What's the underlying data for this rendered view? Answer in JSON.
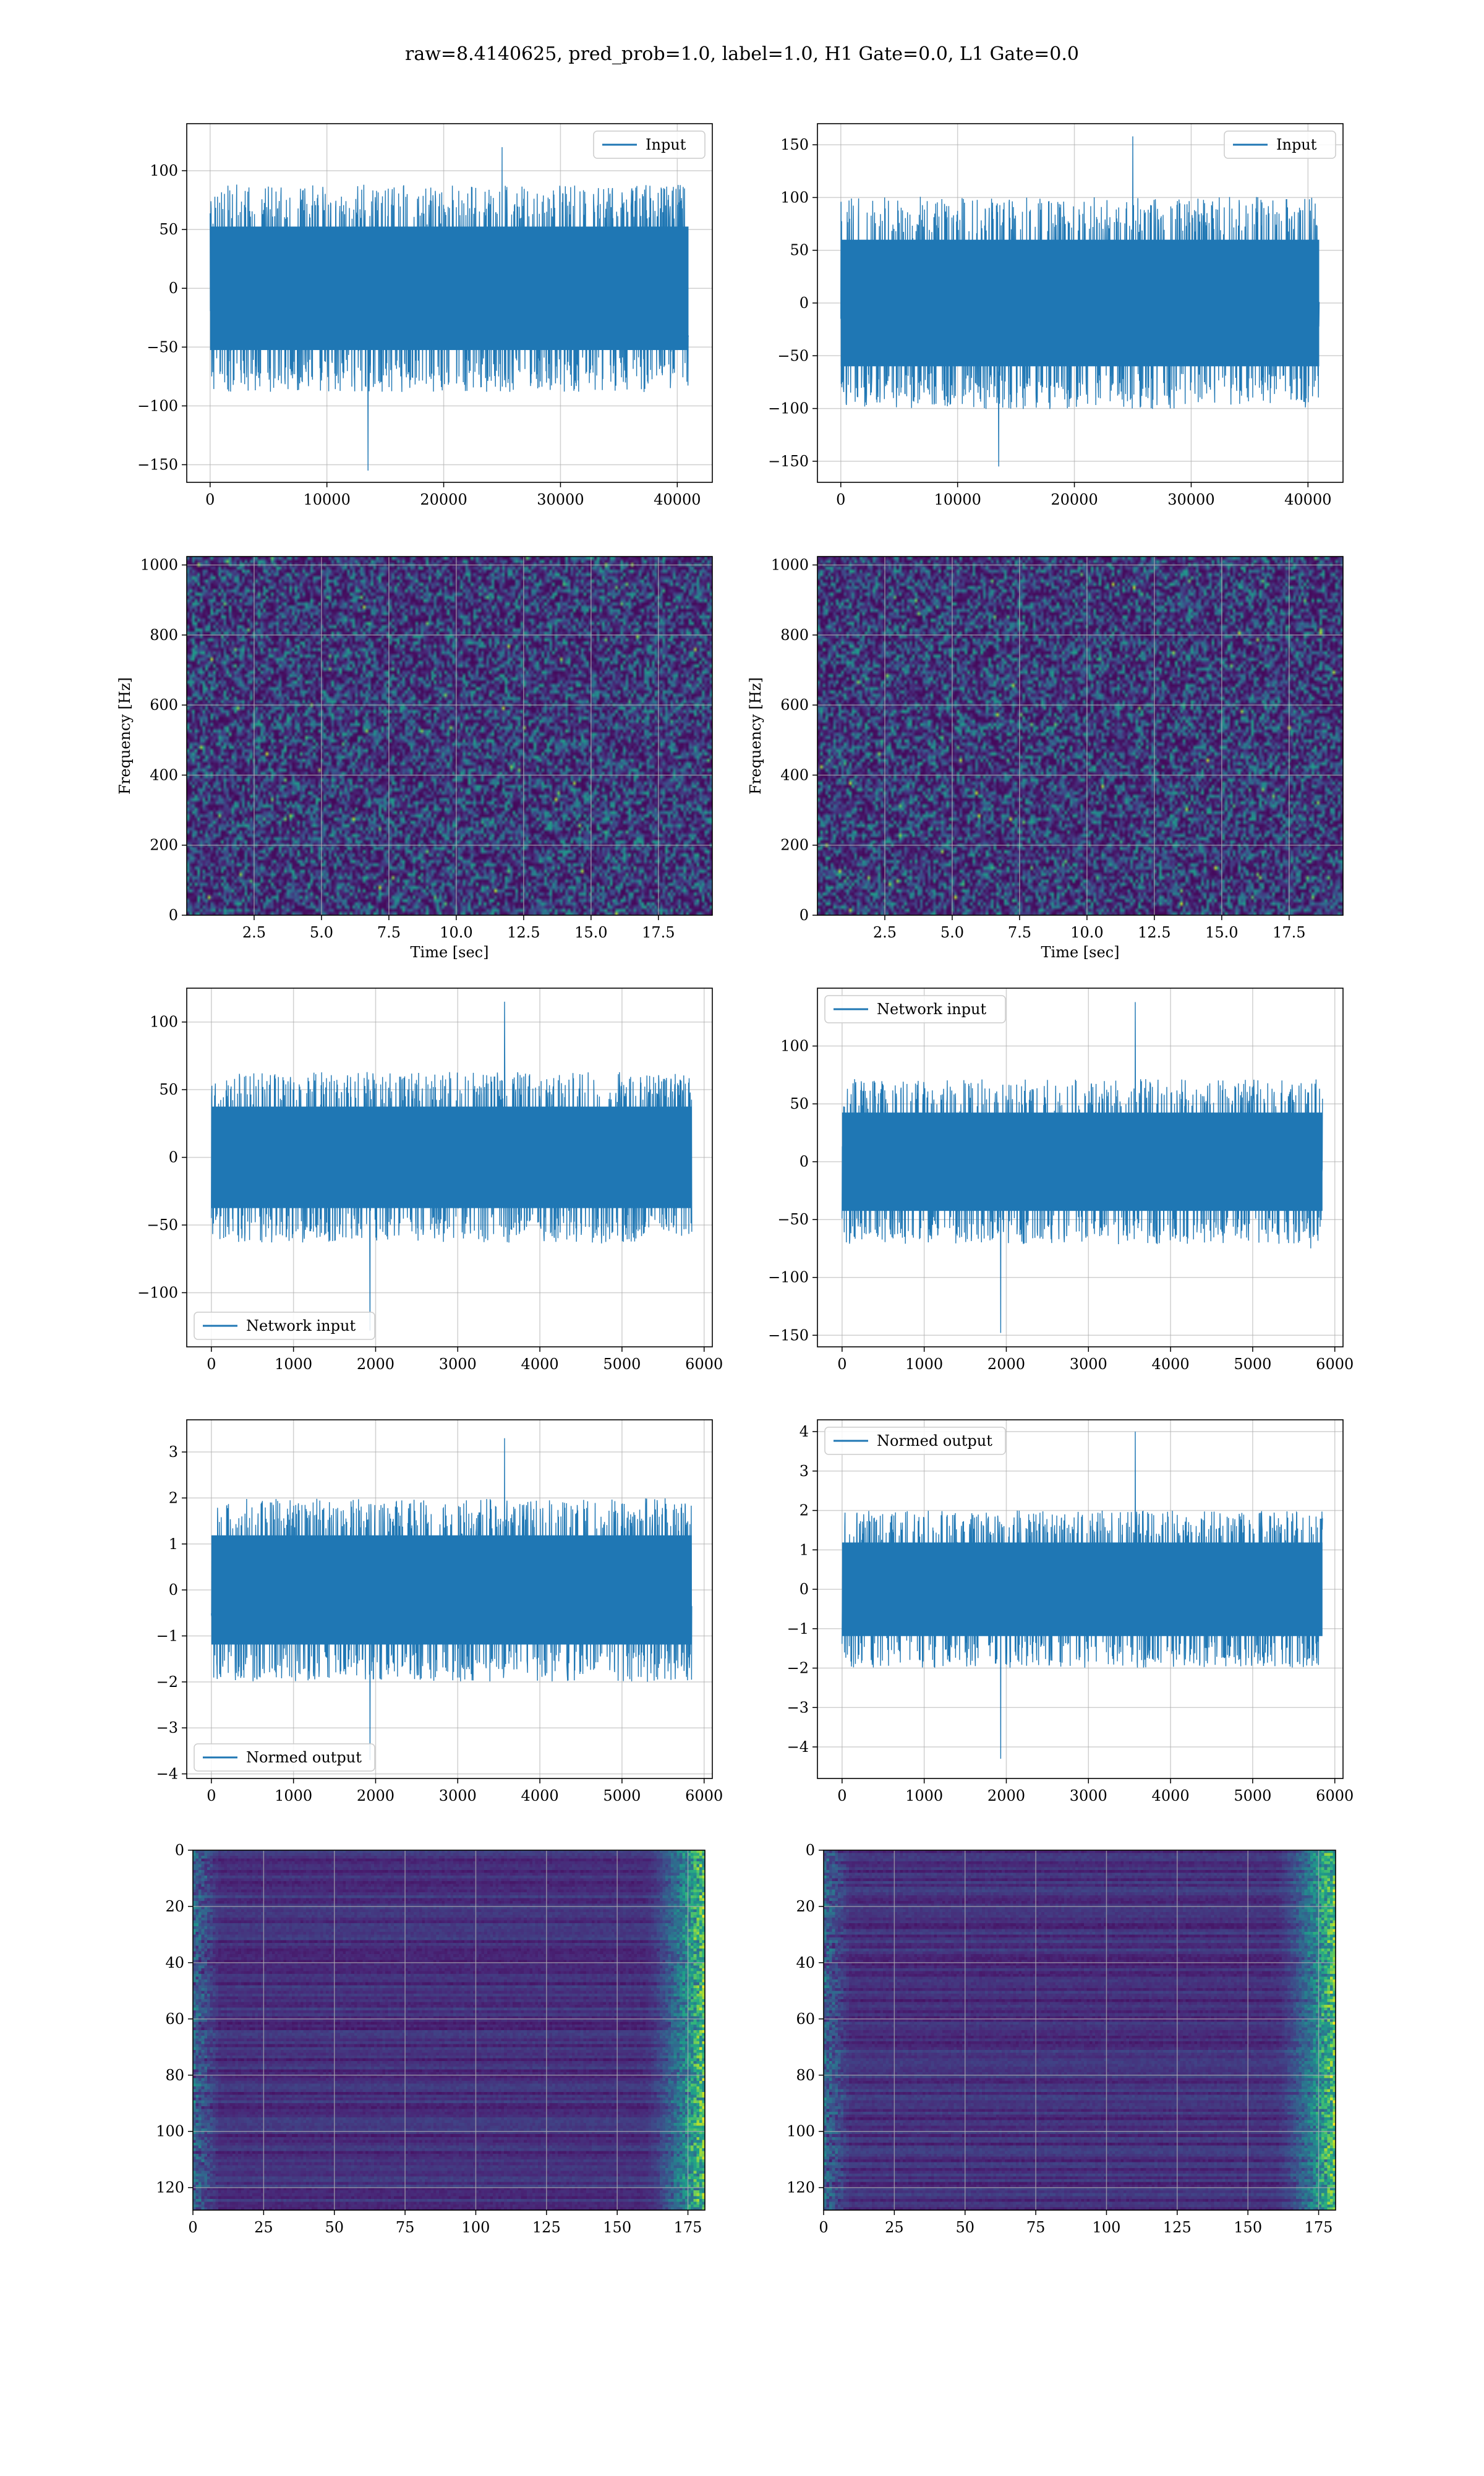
{
  "figure": {
    "suptitle": "raw=8.4140625, pred_prob=1.0, label=1.0, H1 Gate=0.0, L1 Gate=0.0",
    "colors": {
      "line": "#1f77b4",
      "grid": "#b0b0b0",
      "viridis_dark": "#440154"
    }
  },
  "chart_data": [
    {
      "id": "input-h1",
      "type": "line",
      "series": [
        {
          "name": "Input",
          "amp": 42,
          "extreme_min": -155,
          "extreme_max": 120
        }
      ],
      "xlim": [
        -2000,
        43000
      ],
      "ylim": [
        -165,
        140
      ],
      "xticks": [
        0,
        10000,
        20000,
        30000,
        40000
      ],
      "yticks": [
        -150,
        -100,
        -50,
        0,
        50,
        100
      ],
      "tick_labels_x": [
        "0",
        "10000",
        "20000",
        "30000",
        "40000"
      ],
      "tick_labels_y": [
        "−150",
        "−100",
        "−50",
        "0",
        "50",
        "100"
      ],
      "data_x_range": [
        0,
        40960
      ],
      "grid": true,
      "legend": "upper right",
      "xlabel": "",
      "ylabel": ""
    },
    {
      "id": "input-l1",
      "type": "line",
      "series": [
        {
          "name": "Input",
          "amp": 48,
          "extreme_min": -155,
          "extreme_max": 158
        }
      ],
      "xlim": [
        -2000,
        43000
      ],
      "ylim": [
        -170,
        170
      ],
      "xticks": [
        0,
        10000,
        20000,
        30000,
        40000
      ],
      "yticks": [
        -150,
        -100,
        -50,
        0,
        50,
        100,
        150
      ],
      "tick_labels_x": [
        "0",
        "10000",
        "20000",
        "30000",
        "40000"
      ],
      "tick_labels_y": [
        "−150",
        "−100",
        "−50",
        "0",
        "50",
        "100",
        "150"
      ],
      "data_x_range": [
        0,
        40960
      ],
      "grid": true,
      "legend": "upper right",
      "xlabel": "",
      "ylabel": ""
    },
    {
      "id": "spec-h1",
      "type": "heatmap",
      "xlim": [
        0,
        19.5
      ],
      "ylim": [
        0,
        1024
      ],
      "xticks": [
        2.5,
        5,
        7.5,
        10,
        12.5,
        15,
        17.5
      ],
      "yticks": [
        0,
        200,
        400,
        600,
        800,
        1000
      ],
      "tick_labels_x": [
        "2.5",
        "5.0",
        "7.5",
        "10.0",
        "12.5",
        "15.0",
        "17.5"
      ],
      "tick_labels_y": [
        "0",
        "200",
        "400",
        "600",
        "800",
        "1000"
      ],
      "xlabel": "Time [sec]",
      "ylabel": "Frequency [Hz]",
      "grid": true,
      "colormap": "viridis"
    },
    {
      "id": "spec-l1",
      "type": "heatmap",
      "xlim": [
        0,
        19.5
      ],
      "ylim": [
        0,
        1024
      ],
      "xticks": [
        2.5,
        5,
        7.5,
        10,
        12.5,
        15,
        17.5
      ],
      "yticks": [
        0,
        200,
        400,
        600,
        800,
        1000
      ],
      "tick_labels_x": [
        "2.5",
        "5.0",
        "7.5",
        "10.0",
        "12.5",
        "15.0",
        "17.5"
      ],
      "tick_labels_y": [
        "0",
        "200",
        "400",
        "600",
        "800",
        "1000"
      ],
      "xlabel": "Time [sec]",
      "ylabel": "Frequency [Hz]",
      "grid": true,
      "colormap": "viridis"
    },
    {
      "id": "net-h1",
      "type": "line",
      "series": [
        {
          "name": "Network input",
          "amp": 30,
          "extreme_min": -128,
          "extreme_max": 115
        }
      ],
      "xlim": [
        -300,
        6100
      ],
      "ylim": [
        -140,
        125
      ],
      "xticks": [
        0,
        1000,
        2000,
        3000,
        4000,
        5000,
        6000
      ],
      "yticks": [
        -100,
        -50,
        0,
        50,
        100
      ],
      "tick_labels_x": [
        "0",
        "1000",
        "2000",
        "3000",
        "4000",
        "5000",
        "6000"
      ],
      "tick_labels_y": [
        "−100",
        "−50",
        "0",
        "50",
        "100"
      ],
      "data_x_range": [
        0,
        5850
      ],
      "grid": true,
      "legend": "lower left",
      "xlabel": "",
      "ylabel": ""
    },
    {
      "id": "net-l1",
      "type": "line",
      "series": [
        {
          "name": "Network input",
          "amp": 34,
          "extreme_min": -148,
          "extreme_max": 138
        }
      ],
      "xlim": [
        -300,
        6100
      ],
      "ylim": [
        -160,
        150
      ],
      "xticks": [
        0,
        1000,
        2000,
        3000,
        4000,
        5000,
        6000
      ],
      "yticks": [
        -150,
        -100,
        -50,
        0,
        50,
        100
      ],
      "tick_labels_x": [
        "0",
        "1000",
        "2000",
        "3000",
        "4000",
        "5000",
        "6000"
      ],
      "tick_labels_y": [
        "−150",
        "−100",
        "−50",
        "0",
        "50",
        "100"
      ],
      "data_x_range": [
        0,
        5850
      ],
      "grid": true,
      "legend": "upper left",
      "xlabel": "",
      "ylabel": ""
    },
    {
      "id": "norm-h1",
      "type": "line",
      "series": [
        {
          "name": "Normed output",
          "amp": 0.95,
          "extreme_min": -3.7,
          "extreme_max": 3.3
        }
      ],
      "xlim": [
        -300,
        6100
      ],
      "ylim": [
        -4.1,
        3.7
      ],
      "xticks": [
        0,
        1000,
        2000,
        3000,
        4000,
        5000,
        6000
      ],
      "yticks": [
        -4,
        -3,
        -2,
        -1,
        0,
        1,
        2,
        3
      ],
      "tick_labels_x": [
        "0",
        "1000",
        "2000",
        "3000",
        "4000",
        "5000",
        "6000"
      ],
      "tick_labels_y": [
        "−4",
        "−3",
        "−2",
        "−1",
        "0",
        "1",
        "2",
        "3"
      ],
      "data_x_range": [
        0,
        5850
      ],
      "grid": true,
      "legend": "lower left",
      "xlabel": "",
      "ylabel": ""
    },
    {
      "id": "norm-l1",
      "type": "line",
      "series": [
        {
          "name": "Normed output",
          "amp": 0.95,
          "extreme_min": -4.3,
          "extreme_max": 4.0
        }
      ],
      "xlim": [
        -300,
        6100
      ],
      "ylim": [
        -4.8,
        4.3
      ],
      "xticks": [
        0,
        1000,
        2000,
        3000,
        4000,
        5000,
        6000
      ],
      "yticks": [
        -4,
        -3,
        -2,
        -1,
        0,
        1,
        2,
        3,
        4
      ],
      "tick_labels_x": [
        "0",
        "1000",
        "2000",
        "3000",
        "4000",
        "5000",
        "6000"
      ],
      "tick_labels_y": [
        "−4",
        "−3",
        "−2",
        "−1",
        "0",
        "1",
        "2",
        "3",
        "4"
      ],
      "data_x_range": [
        0,
        5850
      ],
      "grid": true,
      "legend": "upper left",
      "xlabel": "",
      "ylabel": ""
    },
    {
      "id": "feat-h1",
      "type": "heatmap",
      "xlim": [
        0,
        181
      ],
      "ylim": [
        128,
        0
      ],
      "xticks": [
        0,
        25,
        50,
        75,
        100,
        125,
        150,
        175
      ],
      "yticks": [
        0,
        20,
        40,
        60,
        80,
        100,
        120
      ],
      "tick_labels_x": [
        "0",
        "25",
        "50",
        "75",
        "100",
        "125",
        "150",
        "175"
      ],
      "tick_labels_y": [
        "0",
        "20",
        "40",
        "60",
        "80",
        "100",
        "120"
      ],
      "xlabel": "",
      "ylabel": "",
      "grid": true,
      "colormap": "viridis"
    },
    {
      "id": "feat-l1",
      "type": "heatmap",
      "xlim": [
        0,
        181
      ],
      "ylim": [
        128,
        0
      ],
      "xticks": [
        0,
        25,
        50,
        75,
        100,
        125,
        150,
        175
      ],
      "yticks": [
        0,
        20,
        40,
        60,
        80,
        100,
        120
      ],
      "tick_labels_x": [
        "0",
        "25",
        "50",
        "75",
        "100",
        "125",
        "150",
        "175"
      ],
      "tick_labels_y": [
        "0",
        "20",
        "40",
        "60",
        "80",
        "100",
        "120"
      ],
      "xlabel": "",
      "ylabel": "",
      "grid": true,
      "colormap": "viridis"
    }
  ]
}
